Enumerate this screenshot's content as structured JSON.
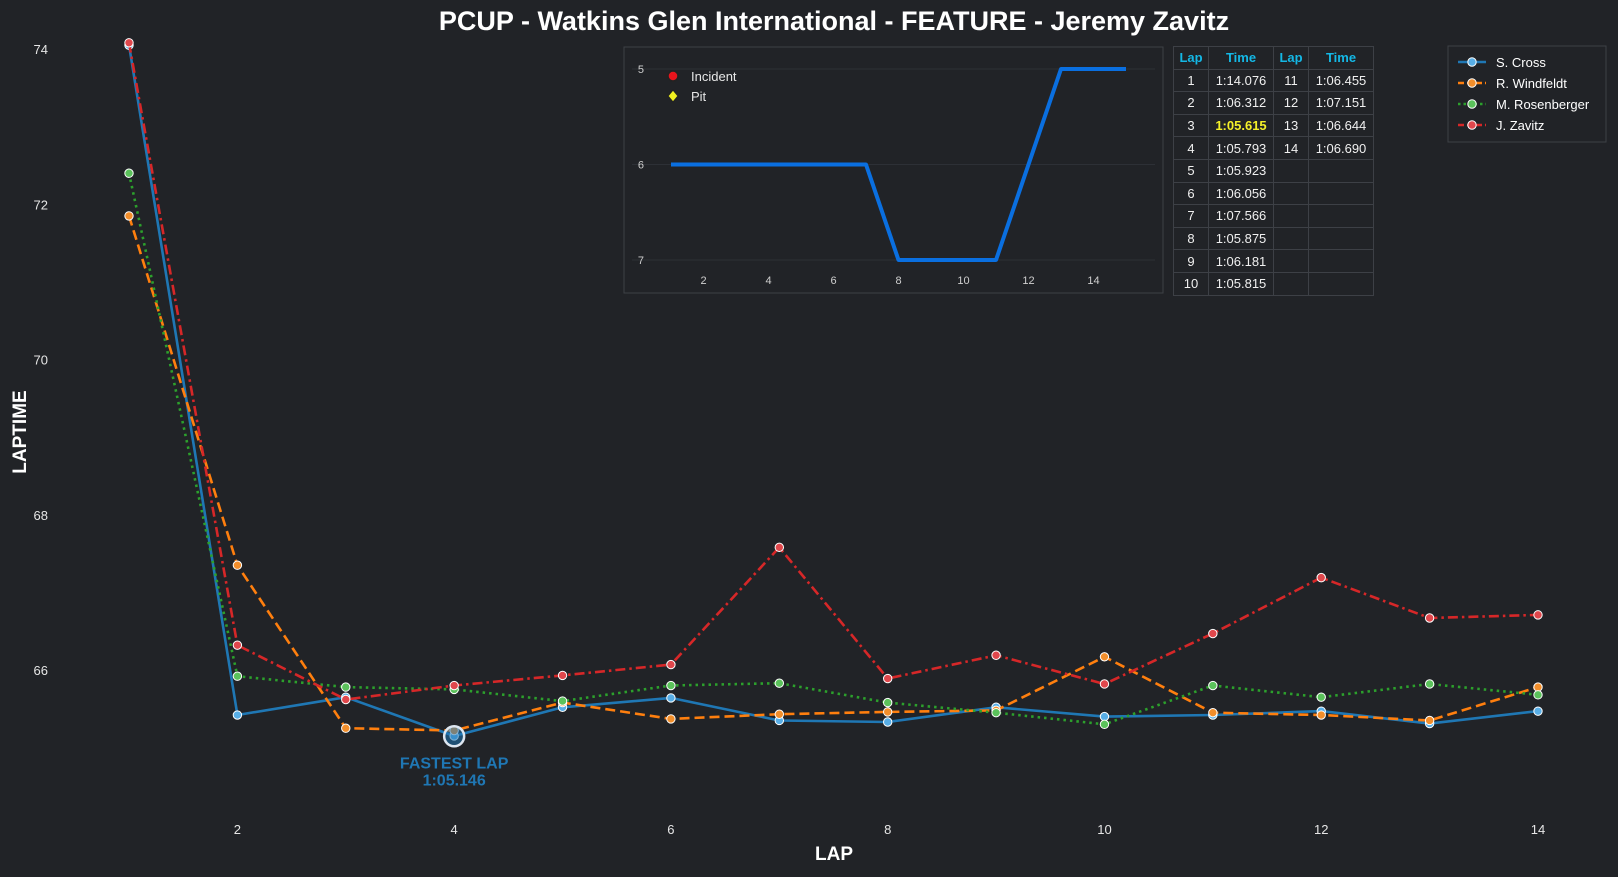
{
  "chart_data": {
    "type": "line",
    "title": "PCUP - Watkins Glen International - FEATURE - Jeremy Zavitz",
    "xlabel": "LAP",
    "ylabel": "LAPTIME",
    "xlim": [
      1,
      14
    ],
    "ylim": [
      64.0,
      74.1
    ],
    "x_ticks": [
      2,
      4,
      6,
      8,
      10,
      12,
      14
    ],
    "y_ticks": [
      66,
      68,
      70,
      72,
      74
    ],
    "x": [
      1,
      2,
      3,
      4,
      5,
      6,
      7,
      8,
      9,
      10,
      11,
      12,
      13,
      14
    ],
    "grid": false,
    "legend": "top-right",
    "series": [
      {
        "name": "S. Cross",
        "color": "#1f77b4",
        "dash": "solid",
        "marker_fill": "#58aee6",
        "values": [
          74.05,
          65.42,
          65.65,
          65.15,
          65.52,
          65.64,
          65.35,
          65.33,
          65.52,
          65.4,
          65.42,
          65.47,
          65.31,
          65.47
        ]
      },
      {
        "name": "R. Windfeldt",
        "color": "#ff7f0e",
        "dash": "dashed",
        "marker_fill": "#f28e2b",
        "values": [
          71.85,
          67.35,
          65.25,
          65.22,
          65.58,
          65.37,
          65.43,
          65.46,
          65.48,
          66.17,
          65.45,
          65.42,
          65.35,
          65.78
        ]
      },
      {
        "name": "M. Rosenberger",
        "color": "#2ca02c",
        "dash": "dotted",
        "marker_fill": "#5bc25b",
        "values": [
          72.4,
          65.92,
          65.78,
          65.75,
          65.6,
          65.8,
          65.83,
          65.58,
          65.45,
          65.3,
          65.8,
          65.65,
          65.82,
          65.68
        ]
      },
      {
        "name": "J. Zavitz",
        "color": "#d62728",
        "dash": "dashdot",
        "marker_fill": "#e0474c",
        "values": [
          74.08,
          66.32,
          65.62,
          65.8,
          65.93,
          66.07,
          67.58,
          65.89,
          66.19,
          65.82,
          66.47,
          67.19,
          66.67,
          66.71
        ]
      }
    ],
    "annotation": {
      "label": "FASTEST LAP",
      "value": "1:05.146",
      "x": 4,
      "y": 65.146,
      "color": "#1f77b4"
    },
    "inset": {
      "type": "line",
      "x": [
        1,
        2,
        3,
        4,
        5,
        6,
        7,
        8,
        9,
        10,
        11,
        12,
        13,
        14,
        15
      ],
      "values": [
        6,
        6,
        6,
        6,
        6,
        6,
        6,
        7,
        7,
        7,
        7,
        6,
        5,
        5,
        5
      ],
      "ylim": [
        7,
        5
      ],
      "y_ticks": [
        5,
        6,
        7
      ],
      "x_ticks": [
        2,
        4,
        6,
        8,
        10,
        12,
        14
      ],
      "xlim": [
        0.5,
        15.5
      ],
      "color": "#0a6fe0",
      "legend": [
        {
          "label": "Incident",
          "marker": "circle",
          "color": "#e8141c"
        },
        {
          "label": "Pit",
          "marker": "diamond",
          "color": "#f0f020"
        }
      ]
    },
    "table": {
      "headers": [
        "Lap",
        "Time",
        "Lap",
        "Time"
      ],
      "rows": [
        [
          "1",
          "1:14.076",
          "11",
          "1:06.455"
        ],
        [
          "2",
          "1:06.312",
          "12",
          "1:07.151"
        ],
        [
          "3",
          "1:05.615",
          "13",
          "1:06.644"
        ],
        [
          "4",
          "1:05.793",
          "14",
          "1:06.690"
        ],
        [
          "5",
          "1:05.923",
          "",
          ""
        ],
        [
          "6",
          "1:06.056",
          "",
          ""
        ],
        [
          "7",
          "1:07.566",
          "",
          ""
        ],
        [
          "8",
          "1:05.875",
          "",
          ""
        ],
        [
          "9",
          "1:06.181",
          "",
          ""
        ],
        [
          "10",
          "1:05.815",
          "",
          ""
        ]
      ],
      "best_lap_time": "1:05.615"
    }
  }
}
